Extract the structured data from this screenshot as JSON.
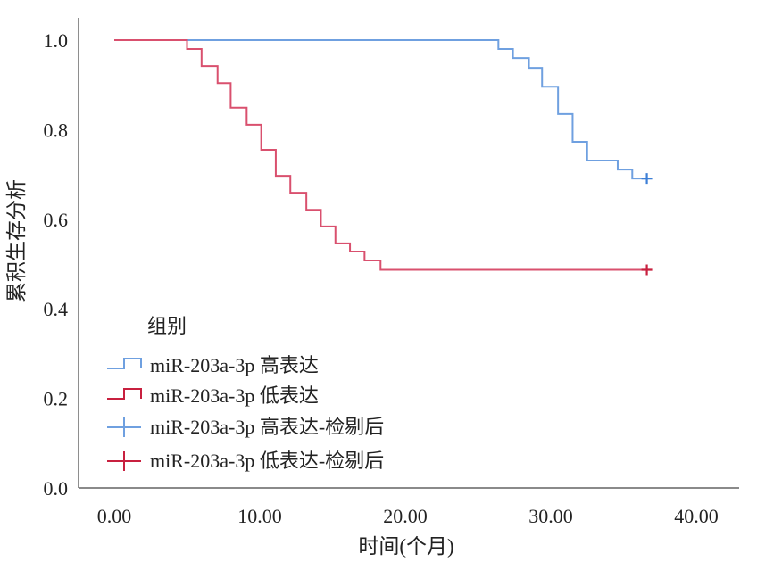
{
  "chart_data": {
    "type": "line",
    "subtype": "kaplan-meier",
    "xlabel": "时间(个月)",
    "ylabel": "累积生存分析",
    "xlim": [
      0,
      40
    ],
    "ylim": [
      0,
      1
    ],
    "xticks": [
      "0.00",
      "10.00",
      "20.00",
      "30.00",
      "40.00"
    ],
    "xtick_values": [
      0,
      10,
      20,
      30,
      40
    ],
    "yticks": [
      "0.0",
      "0.2",
      "0.4",
      "0.6",
      "0.8",
      "1.0"
    ],
    "ytick_values": [
      0,
      0.2,
      0.4,
      0.6,
      0.8,
      1.0
    ],
    "legend": {
      "title": "组别",
      "placement": "bottom-left",
      "entries": [
        "miR-203a-3p 高表达",
        "miR-203a-3p 低表达",
        "miR-203a-3p 高表达-检剔后",
        "miR-203a-3p 低表达-检剔后"
      ]
    },
    "series": [
      {
        "name": "miR-203a-3p 高表达",
        "color": "#6fa0e0",
        "censor_color": "#3d7fd6",
        "x": [
          0,
          26.4,
          27.4,
          28.5,
          29.4,
          30.5,
          31.5,
          32.5,
          34.6,
          35.6
        ],
        "y": [
          1.0,
          0.98,
          0.96,
          0.938,
          0.896,
          0.835,
          0.773,
          0.731,
          0.711,
          0.691
        ],
        "end_x": 36.6,
        "censor_x": 36.6
      },
      {
        "name": "miR-203a-3p 低表达",
        "color": "#d9506e",
        "censor_color": "#c8203f",
        "x": [
          0,
          5.0,
          6.0,
          7.1,
          8.0,
          9.1,
          10.1,
          11.1,
          12.1,
          13.2,
          14.2,
          15.2,
          16.2,
          17.2,
          18.3
        ],
        "y": [
          1.0,
          0.98,
          0.942,
          0.904,
          0.849,
          0.811,
          0.755,
          0.697,
          0.659,
          0.621,
          0.584,
          0.546,
          0.528,
          0.508,
          0.487
        ],
        "end_x": 36.6,
        "censor_x": 36.6
      }
    ]
  }
}
